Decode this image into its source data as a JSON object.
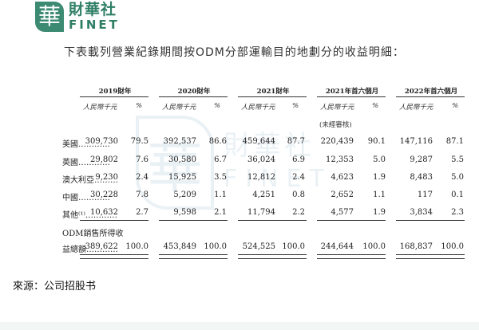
{
  "logo": {
    "mark": "華",
    "cn": "財華社",
    "en": "FINET"
  },
  "heading": "下表載列營業紀錄期間按ODM分部運輸目的地劃分的收益明細：",
  "watermark": {
    "mark": "華",
    "cn": "財華社",
    "en": "FINET"
  },
  "table": {
    "periods": [
      "2019財年",
      "2020財年",
      "2021財年",
      "2021年首六個月",
      "2022年首六個月"
    ],
    "subheads": {
      "amount": "人民幣千元",
      "pct": "%"
    },
    "unaudited_note": "(未經審核)",
    "rows": [
      {
        "label": "美國…………",
        "values": [
          "309,730",
          "79.5",
          "392,537",
          "86.6",
          "459,644",
          "87.7",
          "220,439",
          "90.1",
          "147,116",
          "87.1"
        ]
      },
      {
        "label": "英國…………",
        "values": [
          "29,802",
          "7.6",
          "30,580",
          "6.7",
          "36,024",
          "6.9",
          "12,353",
          "5.0",
          "9,287",
          "5.5"
        ]
      },
      {
        "label": "澳大利亞………",
        "values": [
          "9,230",
          "2.4",
          "15,925",
          "3.5",
          "12,812",
          "2.4",
          "4,623",
          "1.9",
          "8,483",
          "5.0"
        ]
      },
      {
        "label": "中國…………",
        "values": [
          "30,228",
          "7.8",
          "5,209",
          "1.1",
          "4,251",
          "0.8",
          "2,652",
          "1.1",
          "117",
          "0.1"
        ]
      },
      {
        "label": "其他⁽¹⁾…………",
        "values": [
          "10,632",
          "2.7",
          "9,598",
          "2.1",
          "11,794",
          "2.2",
          "4,577",
          "1.9",
          "3,834",
          "2.3"
        ]
      }
    ],
    "total": {
      "label_line1": "ODM銷售所得收",
      "label_line2": "益總額…………",
      "values": [
        "389,622",
        "100.0",
        "453,849",
        "100.0",
        "524,525",
        "100.0",
        "244,644",
        "100.0",
        "168,837",
        "100.0"
      ]
    }
  },
  "source": "來源：公司招股书"
}
